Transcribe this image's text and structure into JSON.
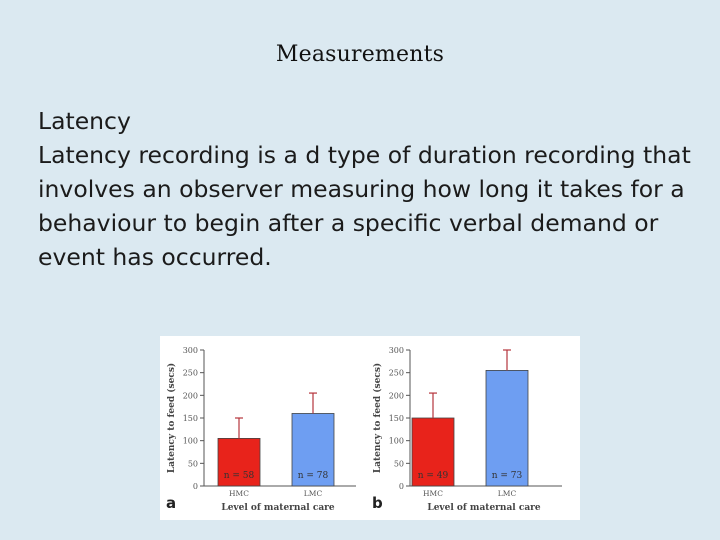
{
  "slide": {
    "title": "Measurements",
    "heading": "Latency",
    "paragraph": "Latency recording is a d type of duration recording that involves an observer measuring how long it takes for a behaviour to begin after a specific verbal demand or event has occurred."
  },
  "colors": {
    "background": "#dbe9f1",
    "hmc_bar": "#e8231b",
    "lmc_bar": "#6e9ef2",
    "error_bar": "#b5343c"
  },
  "chart_data": [
    {
      "type": "bar",
      "panel_label": "a",
      "categories": [
        "HMC",
        "LMC"
      ],
      "values": [
        105,
        160
      ],
      "error_upper": [
        150,
        205
      ],
      "n_labels": [
        "n = 58",
        "n = 78"
      ],
      "ylabel": "Latency to feed (secs)",
      "xlabel": "Level of maternal care",
      "ylim": [
        0,
        300
      ],
      "yticks": [
        "0",
        "50",
        "100",
        "150",
        "200",
        "250",
        "300"
      ]
    },
    {
      "type": "bar",
      "panel_label": "b",
      "categories": [
        "HMC",
        "LMC"
      ],
      "values": [
        150,
        255
      ],
      "error_upper": [
        205,
        300
      ],
      "n_labels": [
        "n = 49",
        "n = 73"
      ],
      "ylabel": "Latency to feed (secs)",
      "xlabel": "Level of maternal care",
      "ylim": [
        0,
        300
      ],
      "yticks": [
        "0",
        "50",
        "100",
        "150",
        "200",
        "250",
        "300"
      ]
    }
  ]
}
